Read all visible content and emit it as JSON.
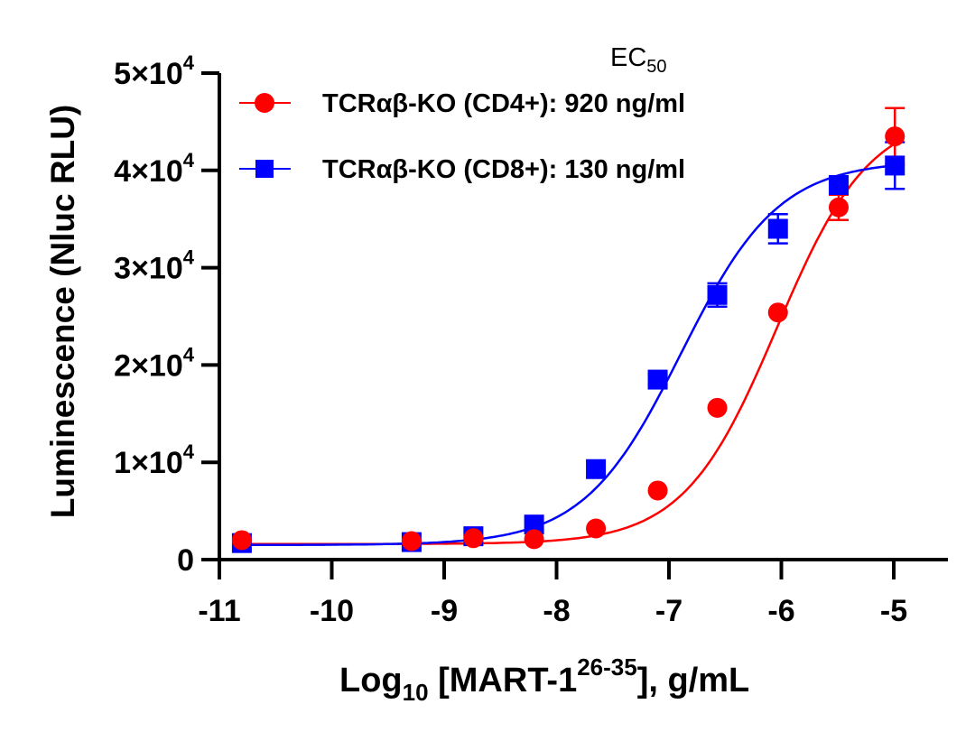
{
  "chart_data": {
    "type": "scatter",
    "title": "",
    "xlabel": "Log10 [MART-1^26-35], g/mL",
    "xlabel_parts": {
      "main": "Log",
      "sub": "10",
      "mid": " [MART-1",
      "sup": "26-35",
      "tail": "], g/mL"
    },
    "ylabel": "Luminescence (Nluc RLU)",
    "xlim": [
      -11,
      -4.6
    ],
    "ylim": [
      0,
      50000
    ],
    "x_ticks": [
      -11,
      -10,
      -9,
      -8,
      -7,
      -6,
      -5
    ],
    "x_tick_labels": [
      "-11",
      "-10",
      "-9",
      "-8",
      "-7",
      "-6",
      "-5"
    ],
    "y_ticks": [
      0,
      10000,
      20000,
      30000,
      40000,
      50000
    ],
    "y_tick_labels": [
      {
        "mant": "0",
        "exp": ""
      },
      {
        "mant": "1×10",
        "exp": "4"
      },
      {
        "mant": "2×10",
        "exp": "4"
      },
      {
        "mant": "3×10",
        "exp": "4"
      },
      {
        "mant": "4×10",
        "exp": "4"
      },
      {
        "mant": "5×10",
        "exp": "4"
      }
    ],
    "grid": false,
    "legend_placement": "top-left",
    "legend_header": {
      "main": "EC",
      "sub": "50"
    },
    "series": [
      {
        "name": "TCRαβ-KO (CD4+)",
        "legend_label": "TCRαβ-KO (CD4+): 920 ng/ml",
        "ec50": "920 ng/ml",
        "color": "#ff0000",
        "marker": "circle",
        "x": [
          -10.8,
          -9.29,
          -8.74,
          -8.2,
          -7.65,
          -7.1,
          -6.57,
          -6.03,
          -5.49,
          -4.99
        ],
        "y": [
          2000,
          1900,
          2200,
          2100,
          3200,
          7100,
          15600,
          25400,
          36200,
          43500
        ],
        "err": [
          0,
          0,
          0,
          0,
          0,
          0,
          0,
          0,
          1300,
          2900
        ],
        "fit": {
          "bottom": 1600,
          "top": 46000,
          "log_ec50": -6.04,
          "hill": 1.05
        }
      },
      {
        "name": "TCRαβ-KO (CD8+)",
        "legend_label": "TCRαβ-KO (CD8+): 130 ng/ml",
        "ec50": "130 ng/ml",
        "color": "#0000ff",
        "marker": "square",
        "x": [
          -10.8,
          -9.29,
          -8.74,
          -8.2,
          -7.65,
          -7.1,
          -6.57,
          -6.03,
          -5.49,
          -4.99
        ],
        "y": [
          1700,
          1800,
          2400,
          3600,
          9300,
          18500,
          27200,
          34000,
          38500,
          40500
        ],
        "err": [
          0,
          0,
          0,
          0,
          0,
          500,
          1200,
          1500,
          500,
          2400
        ],
        "fit": {
          "bottom": 1500,
          "top": 41000,
          "log_ec50": -6.89,
          "hill": 1.0
        }
      }
    ]
  }
}
